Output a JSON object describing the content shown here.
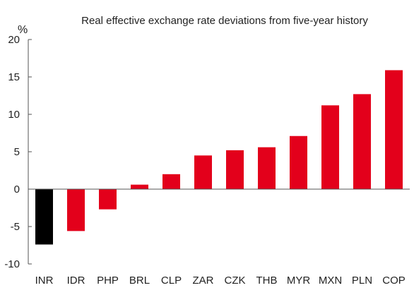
{
  "chart_data": {
    "type": "bar",
    "title": "Real effective exchange rate deviations from five-year history",
    "unit_label": "%",
    "xlabel": "",
    "ylabel": "",
    "ylim": [
      -10,
      20
    ],
    "yticks": [
      20,
      15,
      10,
      5,
      0,
      -5,
      -10
    ],
    "ytick_labels": [
      "20",
      "15",
      "10",
      "5",
      "0",
      "-5",
      "-10"
    ],
    "categories": [
      "INR",
      "IDR",
      "PHP",
      "BRL",
      "CLP",
      "ZAR",
      "CZK",
      "THB",
      "MYR",
      "MXN",
      "PLN",
      "COP"
    ],
    "values": [
      -7.4,
      -5.6,
      -2.7,
      0.6,
      2.0,
      4.5,
      5.2,
      5.6,
      7.1,
      11.2,
      12.7,
      15.9
    ],
    "bar_colors": [
      "#000000",
      "#e3001b",
      "#e3001b",
      "#e3001b",
      "#e3001b",
      "#e3001b",
      "#e3001b",
      "#e3001b",
      "#e3001b",
      "#e3001b",
      "#e3001b",
      "#e3001b"
    ],
    "grid": false,
    "legend": "none"
  }
}
